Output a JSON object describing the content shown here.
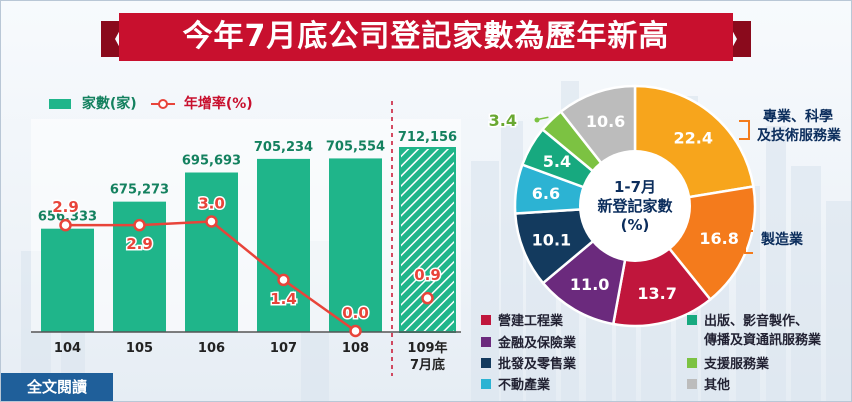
{
  "title": "今年7月底公司登記家數為歷年新高",
  "legend": {
    "bar_label": "家數(家)",
    "line_label": "年增率(%)"
  },
  "read_full_label": "全文閱讀",
  "colors": {
    "bar": "#1fb58a",
    "line": "#e8443a",
    "title_bg": "#c8102e",
    "ribbon": "#8a0a1c"
  },
  "chart_data": [
    {
      "type": "bar",
      "categories": [
        "104",
        "105",
        "106",
        "107",
        "108",
        "109年7月底"
      ],
      "series": [
        {
          "name": "家數(家)",
          "values": [
            656333,
            675273,
            695693,
            705234,
            705554,
            712156
          ],
          "labels": [
            "656,333",
            "675,273",
            "695,693",
            "705,234",
            "705,554",
            "712,156"
          ]
        },
        {
          "name": "年增率(%)",
          "type": "line",
          "values": [
            2.9,
            2.9,
            3.0,
            1.4,
            0.0,
            0.9
          ],
          "labels": [
            "2.9",
            "2.9",
            "3.0",
            "1.4",
            "0.0",
            "0.9"
          ]
        }
      ],
      "highlight_last": true
    },
    {
      "type": "pie",
      "center_label": [
        "1-7月",
        "新登記家數",
        "(%)"
      ],
      "slices": [
        {
          "name": "專業、科學及技術服務業",
          "value": 22.4,
          "label": "22.4",
          "color": "#f7a51c"
        },
        {
          "name": "製造業",
          "value": 16.8,
          "label": "16.8",
          "color": "#f47b1c"
        },
        {
          "name": "營建工程業",
          "value": 13.7,
          "label": "13.7",
          "color": "#c0163c"
        },
        {
          "name": "金融及保險業",
          "value": 11.0,
          "label": "11.0",
          "color": "#6b2a7d"
        },
        {
          "name": "批發及零售業",
          "value": 10.1,
          "label": "10.1",
          "color": "#133a5e"
        },
        {
          "name": "不動產業",
          "value": 6.6,
          "label": "6.6",
          "color": "#2cb3d3"
        },
        {
          "name": "出版、影音製作、傳播及資通訊服務業",
          "value": 5.4,
          "label": "5.4",
          "color": "#17a97f"
        },
        {
          "name": "支援服務業",
          "value": 3.4,
          "label": "3.4",
          "color": "#7cc242"
        },
        {
          "name": "其他",
          "value": 10.6,
          "label": "10.6",
          "color": "#bcbcbc"
        }
      ],
      "callouts": {
        "prof": [
          "專業、科學",
          "及技術服務業"
        ],
        "mfg": "製造業"
      },
      "legend": [
        {
          "label": "營建工程業",
          "color": "#c0163c"
        },
        {
          "label": "金融及保險業",
          "color": "#6b2a7d"
        },
        {
          "label": "批發及零售業",
          "color": "#133a5e"
        },
        {
          "label": "不動產業",
          "color": "#2cb3d3"
        },
        {
          "label": [
            "出版、影音製作、",
            "傳播及資通訊服務業"
          ],
          "color": "#17a97f"
        },
        {
          "label": "支援服務業",
          "color": "#7cc242"
        },
        {
          "label": "其他",
          "color": "#bcbcbc"
        }
      ]
    }
  ]
}
